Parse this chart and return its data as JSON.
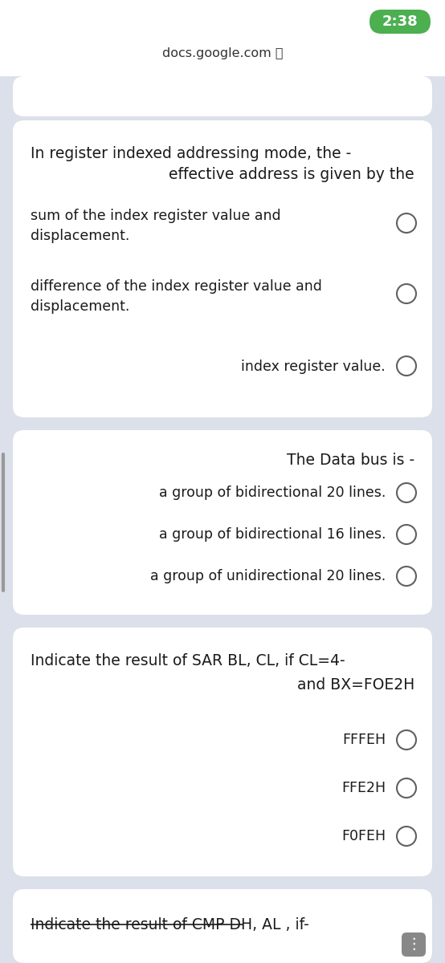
{
  "bg_color": "#dce0ea",
  "card_color": "#ffffff",
  "top_bar_color": "#ffffff",
  "time_text": "2:38",
  "time_bg": "#4caf50",
  "url_text": "docs.google.com",
  "card1_question_line1": "In register indexed addressing mode, the -",
  "card1_question_line2": "effective address is given by the",
  "card1_options": [
    "sum of the index register value and\ndisplacement.",
    "difference of the index register value and\ndisplacement.",
    "index register value."
  ],
  "card2_question": "The Data bus is -",
  "card2_options": [
    "a group of bidirectional 20 lines.",
    "a group of bidirectional 16 lines.",
    "a group of unidirectional 20 lines."
  ],
  "card3_question_line1": "Indicate the result of SAR BL, CL, if CL=4-",
  "card3_question_line2": "and BX=FOE2H",
  "card3_options": [
    "FFFEH",
    "FFE2H",
    "F0FEH"
  ],
  "card4_text_normal": " DH, AL , if-",
  "card4_strikethrough": "Indicate the result of CMP",
  "card4_prefix": "Indicate",
  "text_color": "#1a1a1a",
  "radio_color": "#606060",
  "font_size_q": 13.5,
  "font_size_opt": 12.5,
  "font_size_url": 11.5,
  "font_size_time": 13
}
